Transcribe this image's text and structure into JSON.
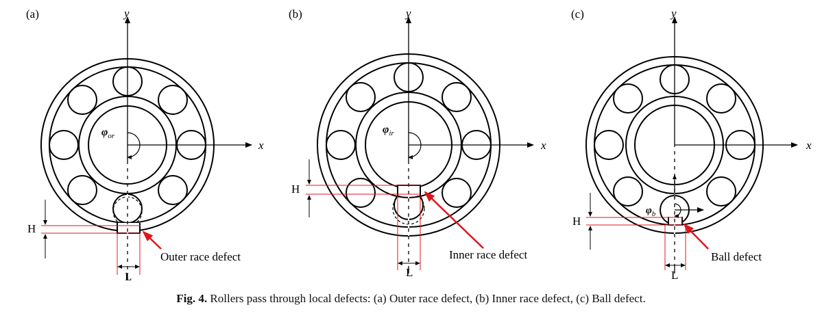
{
  "panels": [
    {
      "label": "(a)",
      "axis_x": "x",
      "axis_y": "y",
      "angle_label_main": "φ",
      "angle_label_sub": "or",
      "defect_label": "Outer race defect",
      "h_label": "H",
      "l_label": "L"
    },
    {
      "label": "(b)",
      "axis_x": "x",
      "axis_y": "y",
      "angle_label_main": "φ",
      "angle_label_sub": "ir",
      "defect_label": "Inner race defect",
      "h_label": "H",
      "l_label": "L"
    },
    {
      "label": "(c)",
      "axis_x": "x",
      "axis_y": "y",
      "angle_label_main": "φ",
      "angle_label_sub": "b",
      "defect_label": "Ball defect",
      "h_label": "H",
      "l_label": "L"
    }
  ],
  "caption": {
    "figure_label": "Fig. 4.",
    "text": "Rollers pass through local defects: (a) Outer race defect, (b) Inner race defect, (c) Ball defect."
  },
  "colors": {
    "line": "#000000",
    "annotation": "#e0141b",
    "arrow": "#e0141b"
  }
}
